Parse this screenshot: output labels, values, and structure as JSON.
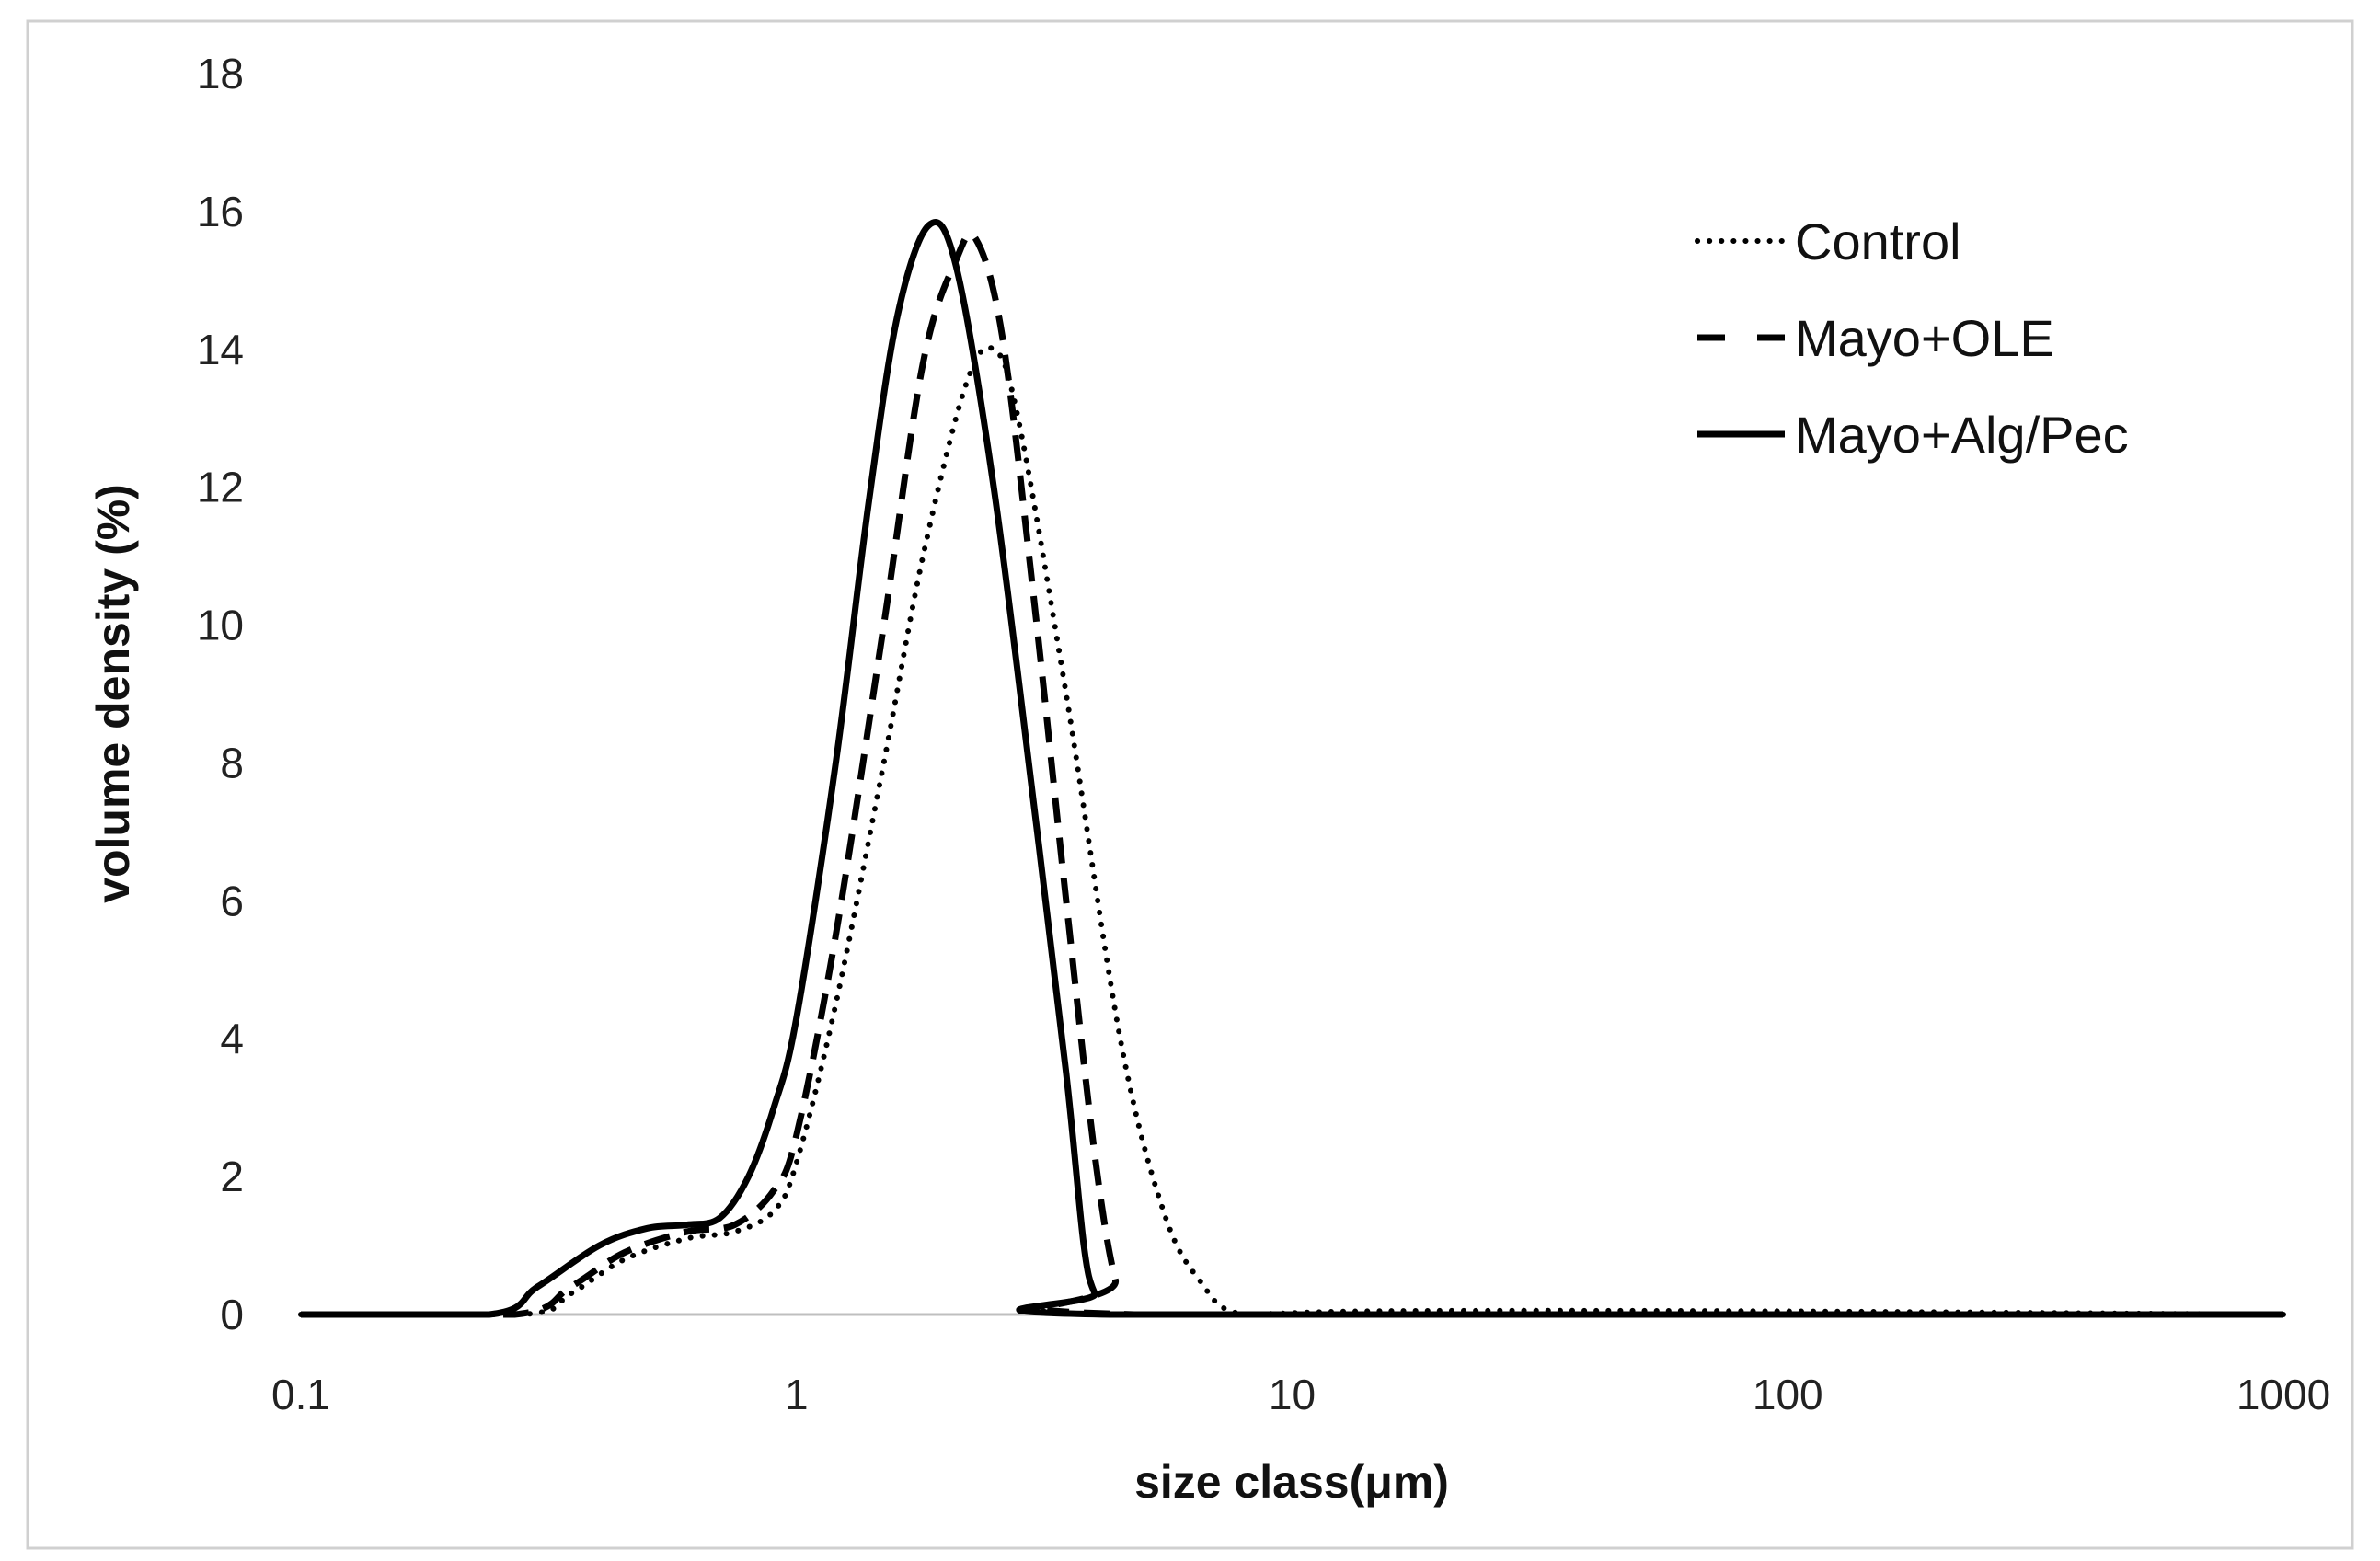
{
  "chart_data": {
    "type": "line",
    "title": "",
    "xlabel": "size class(μm)",
    "ylabel": "volume density (%)",
    "xscale": "log",
    "xlim": [
      0.1,
      1000
    ],
    "ylim": [
      0,
      18
    ],
    "xticks": [
      "0.1",
      "1",
      "10",
      "100",
      "1000"
    ],
    "xtick_values": [
      0.1,
      1,
      10,
      100,
      1000
    ],
    "yticks": [
      "0",
      "2",
      "4",
      "6",
      "8",
      "10",
      "12",
      "14",
      "16",
      "18"
    ],
    "ytick_values": [
      0,
      2,
      4,
      6,
      8,
      10,
      12,
      14,
      16,
      18
    ],
    "grid": false,
    "legend_position": "top-right",
    "series": [
      {
        "name": "Control",
        "style": "dotted",
        "color": "#000000",
        "x": [
          0.1,
          0.28,
          0.35,
          0.45,
          0.6,
          0.75,
          0.9,
          1.0,
          1.2,
          1.5,
          1.8,
          2.2,
          2.5,
          2.8,
          3.5,
          4.5,
          5.5,
          6.5,
          8,
          15,
          80,
          1000
        ],
        "y": [
          0,
          0,
          0.3,
          0.8,
          1.1,
          1.2,
          1.5,
          2.2,
          4.5,
          8.0,
          11.0,
          13.5,
          14.0,
          13.0,
          9.0,
          4.0,
          1.5,
          0.5,
          0,
          0.05,
          0.05,
          0
        ]
      },
      {
        "name": "Mayo+OLE",
        "style": "dashed",
        "color": "#000000",
        "x": [
          0.1,
          0.27,
          0.35,
          0.45,
          0.6,
          0.75,
          0.9,
          1.0,
          1.2,
          1.5,
          1.8,
          2.1,
          2.3,
          2.6,
          3.0,
          3.5,
          4.0,
          4.4,
          4.8,
          1000
        ],
        "y": [
          0,
          0,
          0.4,
          0.9,
          1.2,
          1.3,
          1.8,
          2.6,
          5.5,
          10.0,
          13.8,
          15.3,
          15.6,
          14.2,
          10.5,
          6.0,
          2.3,
          0.5,
          0,
          0
        ]
      },
      {
        "name": "Mayo+Alg/Pec",
        "style": "solid",
        "color": "#000000",
        "x": [
          0.1,
          0.24,
          0.3,
          0.4,
          0.5,
          0.6,
          0.7,
          0.8,
          0.9,
          1.0,
          1.2,
          1.4,
          1.6,
          1.85,
          2.1,
          2.5,
          3.0,
          3.5,
          3.8,
          4.0,
          4.3,
          1000
        ],
        "y": [
          0,
          0,
          0.4,
          1.0,
          1.25,
          1.3,
          1.4,
          2.0,
          3.0,
          4.3,
          8.0,
          11.8,
          14.5,
          15.8,
          15.2,
          12.0,
          7.5,
          3.5,
          1.0,
          0.3,
          0,
          0
        ]
      }
    ]
  }
}
